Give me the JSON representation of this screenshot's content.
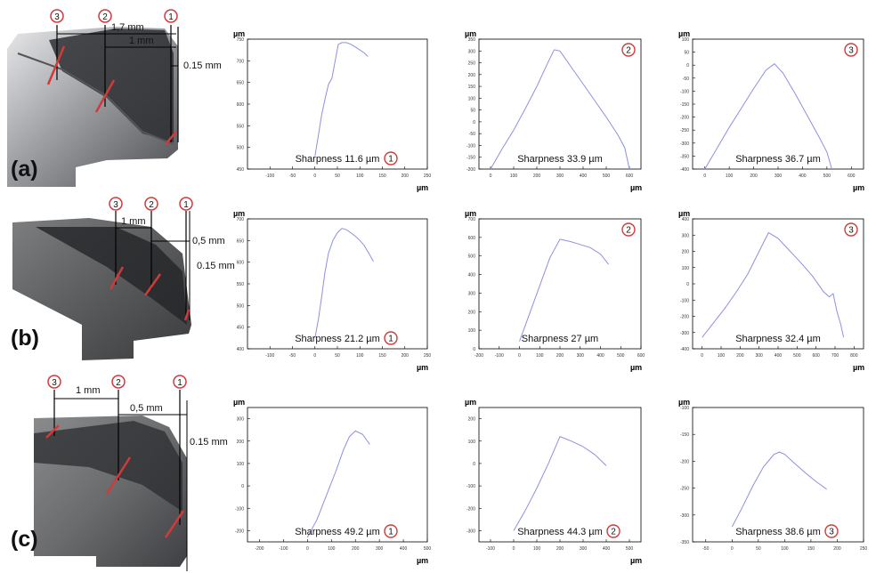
{
  "colors": {
    "curve": "#8f8fe0",
    "marker": "#d23a3a",
    "frame": "#000000"
  },
  "rows": [
    {
      "label": "(a)",
      "dims": [
        "1,7 mm",
        "1 mm",
        "0.15 mm"
      ],
      "markers": [
        "3",
        "2",
        "1"
      ]
    },
    {
      "label": "(b)",
      "dims": [
        "1 mm",
        "0,5 mm",
        "0.15 mm"
      ],
      "markers": [
        "3",
        "2",
        "1"
      ]
    },
    {
      "label": "(c)",
      "dims": [
        "1 mm",
        "0,5 mm",
        "0.15 mm"
      ],
      "markers": [
        "3",
        "2",
        "1"
      ]
    }
  ],
  "chart_data": [
    {
      "id": "a1",
      "type": "line",
      "y_unit": "µm",
      "x_unit": "µm",
      "caption": "Sharpness 11.6 µm",
      "marker": "1",
      "xlim": [
        -150,
        250
      ],
      "ylim": [
        450,
        750
      ],
      "xticks": [
        "-100",
        "-50",
        "0",
        "50",
        "100",
        "150",
        "200",
        "250"
      ],
      "yticks": [
        "450",
        "500",
        "550",
        "600",
        "650",
        "700",
        "750"
      ],
      "x": [
        0,
        8,
        15,
        22,
        30,
        38,
        45,
        52,
        60,
        70,
        80,
        90,
        100,
        110,
        118
      ],
      "y": [
        480,
        530,
        575,
        610,
        645,
        660,
        700,
        738,
        742,
        742,
        738,
        732,
        725,
        718,
        710
      ]
    },
    {
      "id": "a2",
      "type": "line",
      "y_unit": "µm",
      "x_unit": "µm",
      "caption": "Sharpness 33.9 µm",
      "marker": "2",
      "xlim": [
        -50,
        650
      ],
      "ylim": [
        -200,
        350
      ],
      "xticks": [
        "0",
        "100",
        "200",
        "300",
        "400",
        "500",
        "600"
      ],
      "yticks": [
        "-200",
        "-150",
        "-100",
        "-50",
        "0",
        "50",
        "100",
        "150",
        "200",
        "250",
        "300",
        "350"
      ],
      "x": [
        0,
        50,
        100,
        150,
        200,
        250,
        275,
        300,
        350,
        400,
        450,
        500,
        550,
        580,
        600
      ],
      "y": [
        -200,
        -115,
        -35,
        55,
        150,
        255,
        305,
        300,
        230,
        160,
        90,
        20,
        -55,
        -110,
        -200
      ]
    },
    {
      "id": "a3",
      "type": "line",
      "y_unit": "µm",
      "x_unit": "µm",
      "caption": "Sharpness 36.7 µm",
      "marker": "3",
      "xlim": [
        -50,
        650
      ],
      "ylim": [
        -400,
        100
      ],
      "xticks": [
        "0",
        "100",
        "200",
        "300",
        "400",
        "500",
        "600"
      ],
      "yticks": [
        "-400",
        "-350",
        "-300",
        "-250",
        "-200",
        "-150",
        "-100",
        "-50",
        "0",
        "50",
        "100"
      ],
      "x": [
        0,
        50,
        100,
        150,
        200,
        250,
        285,
        320,
        370,
        420,
        470,
        500,
        520
      ],
      "y": [
        -400,
        -320,
        -240,
        -165,
        -90,
        -20,
        5,
        -30,
        -110,
        -195,
        -280,
        -335,
        -400
      ]
    },
    {
      "id": "b1",
      "type": "line",
      "y_unit": "µm",
      "x_unit": "µm",
      "caption": "Sharpness 21.2 µm",
      "marker": "1",
      "xlim": [
        -150,
        250
      ],
      "ylim": [
        400,
        700
      ],
      "xticks": [
        "-100",
        "-50",
        "0",
        "50",
        "100",
        "150",
        "200",
        "250"
      ],
      "yticks": [
        "400",
        "450",
        "500",
        "550",
        "600",
        "650",
        "700"
      ],
      "x": [
        0,
        8,
        15,
        22,
        30,
        40,
        50,
        60,
        70,
        80,
        90,
        100,
        110,
        120,
        130
      ],
      "y": [
        425,
        470,
        520,
        575,
        620,
        650,
        668,
        678,
        675,
        668,
        660,
        650,
        638,
        620,
        602
      ]
    },
    {
      "id": "b2",
      "type": "line",
      "y_unit": "µm",
      "x_unit": "µm",
      "caption": "Sharpness 27 µm",
      "marker": "2",
      "xlim": [
        -200,
        600
      ],
      "ylim": [
        0,
        700
      ],
      "xticks": [
        "-200",
        "-100",
        "0",
        "100",
        "200",
        "300",
        "400",
        "500",
        "600"
      ],
      "yticks": [
        "0",
        "100",
        "200",
        "300",
        "400",
        "500",
        "600",
        "700"
      ],
      "x": [
        0,
        50,
        100,
        150,
        200,
        250,
        300,
        350,
        400,
        440
      ],
      "y": [
        40,
        190,
        340,
        490,
        590,
        578,
        562,
        545,
        510,
        455
      ]
    },
    {
      "id": "b3",
      "type": "line",
      "y_unit": "µm",
      "x_unit": "µm",
      "caption": "Sharpness 32.4 µm",
      "marker": "3",
      "xlim": [
        -50,
        850
      ],
      "ylim": [
        -400,
        400
      ],
      "xticks": [
        "0",
        "100",
        "200",
        "300",
        "400",
        "500",
        "600",
        "700",
        "800"
      ],
      "yticks": [
        "-400",
        "-300",
        "-200",
        "-100",
        "0",
        "100",
        "200",
        "300",
        "400"
      ],
      "x": [
        0,
        60,
        120,
        180,
        240,
        300,
        350,
        400,
        460,
        520,
        580,
        640,
        670,
        690,
        710,
        730,
        745
      ],
      "y": [
        -330,
        -240,
        -150,
        -50,
        60,
        200,
        315,
        280,
        205,
        130,
        50,
        -50,
        -80,
        -60,
        -170,
        -250,
        -330
      ]
    },
    {
      "id": "c1",
      "type": "line",
      "y_unit": "µm",
      "x_unit": "µm",
      "caption": "Sharpness 49.2 µm",
      "marker": "1",
      "xlim": [
        -250,
        500
      ],
      "ylim": [
        -250,
        350
      ],
      "xticks": [
        "-200",
        "-100",
        "0",
        "100",
        "200",
        "300",
        "400",
        "500"
      ],
      "yticks": [
        "-200",
        "-100",
        "0",
        "100",
        "200",
        "300"
      ],
      "x": [
        0,
        40,
        80,
        120,
        150,
        175,
        200,
        230,
        260
      ],
      "y": [
        -230,
        -150,
        -40,
        70,
        160,
        220,
        245,
        230,
        185
      ]
    },
    {
      "id": "c2",
      "type": "line",
      "y_unit": "µm",
      "x_unit": "µm",
      "caption": "Sharpness 44.3 µm",
      "marker": "2",
      "xlim": [
        -150,
        550
      ],
      "ylim": [
        -350,
        250
      ],
      "xticks": [
        "-100",
        "0",
        "100",
        "200",
        "300",
        "400",
        "500"
      ],
      "yticks": [
        "-300",
        "-200",
        "-100",
        "0",
        "100",
        "200"
      ],
      "x": [
        0,
        50,
        100,
        150,
        200,
        250,
        300,
        350,
        400
      ],
      "y": [
        -300,
        -210,
        -110,
        0,
        120,
        100,
        75,
        40,
        -10
      ]
    },
    {
      "id": "c3",
      "type": "line",
      "y_unit": "µm",
      "x_unit": "",
      "caption": "Sharpness 38.6 µm",
      "marker": "3",
      "xlim": [
        -75,
        250
      ],
      "ylim": [
        -350,
        -100
      ],
      "xticks": [
        "-50",
        "0",
        "50",
        "100",
        "150",
        "200",
        "250"
      ],
      "yticks": [
        "-350",
        "-300",
        "-250",
        "-200",
        "-150",
        "-100"
      ],
      "x": [
        0,
        20,
        40,
        60,
        80,
        90,
        100,
        120,
        140,
        160,
        180
      ],
      "y": [
        -322,
        -285,
        -245,
        -210,
        -187,
        -183,
        -187,
        -205,
        -222,
        -238,
        -252
      ]
    }
  ]
}
